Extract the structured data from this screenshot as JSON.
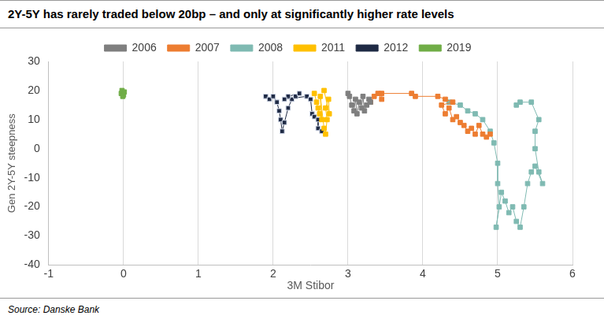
{
  "chart_data": {
    "type": "scatter",
    "title": "2Y-5Y has rarely traded below 20bp – and only at significantly higher rate levels",
    "x_label": "3M Stibor",
    "y_label": "Gen 2Y-5Y steepness",
    "source": "Source: Danske Bank",
    "xlim": [
      -1,
      6
    ],
    "xticks": [
      -1,
      0,
      1,
      2,
      3,
      4,
      5,
      6
    ],
    "ylim": [
      -40,
      30
    ],
    "yticks": [
      -40,
      -30,
      -20,
      -10,
      0,
      10,
      20,
      30
    ],
    "grid": "x",
    "legend": "top",
    "marker": "square",
    "line_style": "solid",
    "series": [
      {
        "name": "2006",
        "color": "#7f7f7f",
        "x": [
          3.0,
          3.02,
          3.05,
          3.08,
          3.1,
          3.12,
          3.15,
          3.18,
          3.2,
          3.22,
          3.25,
          3.28,
          3.3
        ],
        "values": [
          19,
          18,
          15,
          13,
          17,
          12,
          16,
          14,
          18,
          13,
          15,
          17,
          16
        ]
      },
      {
        "name": "2007",
        "color": "#ed7d31",
        "x": [
          3.3,
          3.35,
          3.4,
          3.45,
          3.45,
          3.85,
          3.9,
          4.2,
          4.3,
          4.4,
          4.25,
          4.3,
          4.35,
          4.4,
          4.45,
          4.5,
          4.55,
          4.6,
          4.65,
          4.7,
          4.75,
          4.8,
          4.85,
          4.9
        ],
        "values": [
          16,
          18,
          19,
          17,
          19,
          19,
          18,
          18,
          17,
          16,
          15,
          12,
          14,
          10,
          11,
          9,
          8,
          6,
          7,
          5,
          8,
          5,
          4,
          5
        ]
      },
      {
        "name": "2008",
        "color": "#7fbab2",
        "x": [
          4.35,
          4.5,
          4.6,
          4.7,
          4.8,
          4.9,
          4.95,
          5.0,
          5.0,
          5.02,
          4.98,
          5.05,
          5.1,
          5.15,
          5.2,
          5.25,
          5.3,
          5.35,
          5.4,
          5.45,
          5.5,
          5.6,
          5.55,
          5.5,
          5.5,
          5.55,
          5.45,
          5.3,
          5.25
        ],
        "values": [
          16,
          15,
          13,
          12,
          10,
          6,
          2,
          -5,
          -12,
          -20,
          -27,
          -15,
          -18,
          -22,
          -20,
          -25,
          -27,
          -20,
          -12,
          -8,
          -6,
          -12,
          -8,
          0,
          6,
          10,
          16,
          16,
          15
        ]
      },
      {
        "name": "2011",
        "color": "#ffc000",
        "x": [
          2.55,
          2.58,
          2.6,
          2.62,
          2.65,
          2.63,
          2.68,
          2.7,
          2.72,
          2.7,
          2.74,
          2.75,
          2.68
        ],
        "values": [
          19,
          16,
          14,
          12,
          10,
          18,
          7,
          5,
          10,
          14,
          17,
          12,
          20
        ]
      },
      {
        "name": "2012",
        "color": "#1f2a44",
        "x": [
          1.9,
          1.95,
          2.0,
          2.05,
          2.08,
          2.1,
          2.12,
          2.15,
          2.2,
          2.25,
          2.3,
          2.35,
          2.2,
          2.15,
          2.45,
          2.5,
          2.52,
          2.55,
          2.6,
          2.6,
          2.65
        ],
        "values": [
          18,
          17,
          18,
          16,
          13,
          10,
          6,
          9,
          14,
          17,
          18,
          19,
          18,
          17,
          18,
          17,
          12,
          11,
          10,
          7,
          6
        ]
      },
      {
        "name": "2019",
        "color": "#70ad47",
        "x": [
          -0.03,
          -0.02,
          0.0,
          0.01,
          -0.01
        ],
        "values": [
          19,
          20,
          18.5,
          19.5,
          18
        ]
      }
    ]
  }
}
